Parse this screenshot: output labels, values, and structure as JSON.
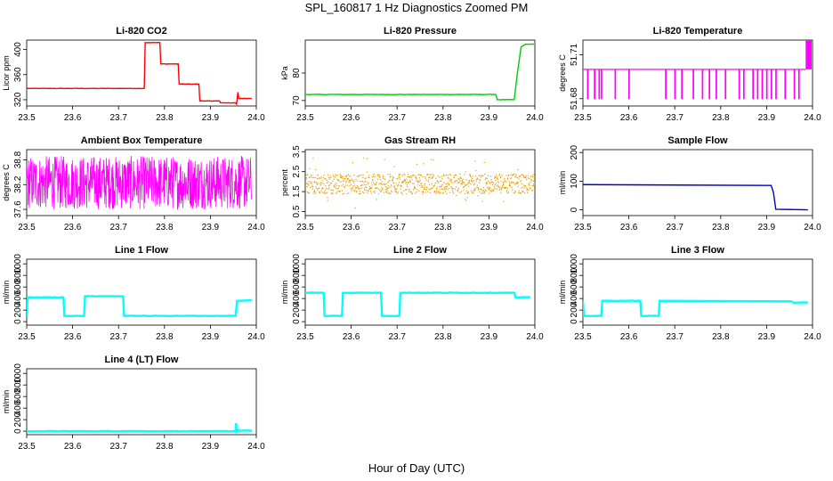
{
  "figure": {
    "title": "SPL_160817  1 Hz Diagnostics Zoomed PM",
    "xlabel": "Hour of Day (UTC)"
  },
  "chart_data": [
    {
      "type": "line",
      "title": "Li-820 CO2",
      "ylabel": "Licor ppm",
      "color": "#ff0000",
      "xlim": [
        23.5,
        24.0
      ],
      "ylim": [
        310,
        415
      ],
      "xticks": [
        "23.5",
        "23.6",
        "23.7",
        "23.8",
        "23.9",
        "24.0"
      ],
      "yticks": [
        "320",
        "360",
        "400"
      ],
      "x": [
        23.5,
        23.756,
        23.758,
        23.79,
        23.792,
        23.83,
        23.832,
        23.875,
        23.877,
        23.92,
        23.922,
        23.955,
        23.957,
        23.96,
        23.962,
        23.99
      ],
      "y": [
        338,
        338,
        411,
        411,
        377,
        377,
        345,
        345,
        318,
        318,
        315,
        315,
        313,
        332,
        322,
        322
      ]
    },
    {
      "type": "line",
      "title": "Li-820 Pressure",
      "ylabel": "kPa",
      "color": "#00cc00",
      "xlim": [
        23.5,
        24.0
      ],
      "ylim": [
        68,
        92
      ],
      "xticks": [
        "23.5",
        "23.6",
        "23.7",
        "23.8",
        "23.9",
        "24.0"
      ],
      "yticks": [
        "70",
        "80"
      ],
      "x": [
        23.5,
        23.915,
        23.918,
        23.955,
        23.962,
        23.97,
        23.98,
        23.998
      ],
      "y": [
        72.2,
        72.2,
        70.3,
        70.3,
        80,
        89.5,
        90.5,
        90.5
      ]
    },
    {
      "type": "line",
      "title": "Li-820 Temperature",
      "ylabel": "degrees C",
      "color": "#ff00ff",
      "xlim": [
        23.5,
        24.0
      ],
      "ylim": [
        51.675,
        51.72
      ],
      "xticks": [
        "23.5",
        "23.6",
        "23.7",
        "23.8",
        "23.9",
        "24.0"
      ],
      "yticks": [
        "51.68",
        "51.71"
      ],
      "base": 51.7,
      "low": 51.68,
      "high": 51.72,
      "dips": [
        23.51,
        23.525,
        23.535,
        23.54,
        23.57,
        23.6,
        23.68,
        23.7,
        23.715,
        23.74,
        23.76,
        23.775,
        23.79,
        23.81,
        23.84,
        23.85,
        23.87,
        23.88,
        23.89,
        23.9,
        23.91,
        23.92,
        23.94,
        23.96,
        23.97
      ],
      "spike_start": 23.985
    },
    {
      "type": "line",
      "title": "Ambient Box Temperature",
      "ylabel": "degrees C",
      "color": "#ff00ff",
      "xlim": [
        23.5,
        24.0
      ],
      "ylim": [
        37.45,
        39.05
      ],
      "xticks": [
        "23.5",
        "23.6",
        "23.7",
        "23.8",
        "23.9",
        "24.0"
      ],
      "yticks": [
        "37.6",
        "38.2",
        "38.8"
      ],
      "noise": {
        "mean": 38.2,
        "min": 37.6,
        "max": 38.9
      }
    },
    {
      "type": "scatter",
      "title": "Gas Stream RH",
      "ylabel": "percent",
      "color": "#e6a000",
      "xlim": [
        23.5,
        24.0
      ],
      "ylim": [
        0.3,
        3.6
      ],
      "xticks": [
        "23.5",
        "23.6",
        "23.7",
        "23.8",
        "23.9",
        "24.0"
      ],
      "yticks": [
        "0.5",
        "1.5",
        "2.5",
        "3.5"
      ],
      "noise": {
        "mean": 1.9,
        "min": 1.4,
        "max": 2.4,
        "spike_max": 3.3,
        "spike_min": 0.6
      }
    },
    {
      "type": "line",
      "title": "Sample Flow",
      "ylabel": "ml/min",
      "color": "#0000cc",
      "xlim": [
        23.5,
        24.0
      ],
      "ylim": [
        -20,
        210
      ],
      "xticks": [
        "23.5",
        "23.6",
        "23.7",
        "23.8",
        "23.9",
        "24.0"
      ],
      "yticks": [
        "0",
        "100",
        "200"
      ],
      "x": [
        23.5,
        23.91,
        23.915,
        23.92,
        23.99
      ],
      "y": [
        88,
        85,
        60,
        2,
        0
      ]
    },
    {
      "type": "line",
      "title": "Line 1 Flow",
      "ylabel": "ml/min",
      "color": "#00ffff",
      "xlim": [
        23.5,
        24.0
      ],
      "ylim": [
        -60,
        1080
      ],
      "xticks": [
        "23.5",
        "23.6",
        "23.7",
        "23.8",
        "23.9",
        "24.0"
      ],
      "yticks": [
        "0",
        "200",
        "400",
        "600",
        "800",
        "1000"
      ],
      "x": [
        23.5,
        23.502,
        23.58,
        23.582,
        23.625,
        23.627,
        23.71,
        23.712,
        23.955,
        23.958,
        23.99
      ],
      "y": [
        100,
        420,
        420,
        100,
        100,
        440,
        440,
        100,
        100,
        360,
        370
      ]
    },
    {
      "type": "line",
      "title": "Line 2 Flow",
      "ylabel": "ml/min",
      "color": "#00ffff",
      "xlim": [
        23.5,
        24.0
      ],
      "ylim": [
        -60,
        1080
      ],
      "xticks": [
        "23.5",
        "23.6",
        "23.7",
        "23.8",
        "23.9",
        "24.0"
      ],
      "yticks": [
        "0",
        "200",
        "400",
        "600",
        "800",
        "1000"
      ],
      "x": [
        23.5,
        23.54,
        23.542,
        23.58,
        23.582,
        23.665,
        23.667,
        23.705,
        23.707,
        23.955,
        23.958,
        23.99
      ],
      "y": [
        500,
        500,
        100,
        100,
        500,
        500,
        100,
        100,
        500,
        500,
        420,
        420
      ]
    },
    {
      "type": "line",
      "title": "Line 3 Flow",
      "ylabel": "ml/min",
      "color": "#00ffff",
      "xlim": [
        23.5,
        24.0
      ],
      "ylim": [
        -60,
        1080
      ],
      "xticks": [
        "23.5",
        "23.6",
        "23.7",
        "23.8",
        "23.9",
        "24.0"
      ],
      "yticks": [
        "0",
        "200",
        "400",
        "600",
        "800",
        "1000"
      ],
      "x": [
        23.5,
        23.502,
        23.54,
        23.542,
        23.625,
        23.627,
        23.665,
        23.667,
        23.955,
        23.958,
        23.99
      ],
      "y": [
        360,
        100,
        100,
        360,
        360,
        100,
        100,
        360,
        350,
        330,
        330
      ]
    },
    {
      "type": "line",
      "title": "Line 4 (LT) Flow",
      "ylabel": "ml/min",
      "color": "#00ffff",
      "xlim": [
        23.5,
        24.0
      ],
      "ylim": [
        -60,
        1080
      ],
      "xticks": [
        "23.5",
        "23.6",
        "23.7",
        "23.8",
        "23.9",
        "24.0"
      ],
      "yticks": [
        "0",
        "200",
        "400",
        "600",
        "800",
        "1000"
      ],
      "x": [
        23.5,
        23.955,
        23.956,
        23.957,
        23.958,
        23.99
      ],
      "y": [
        0,
        0,
        140,
        0,
        10,
        10
      ]
    }
  ]
}
